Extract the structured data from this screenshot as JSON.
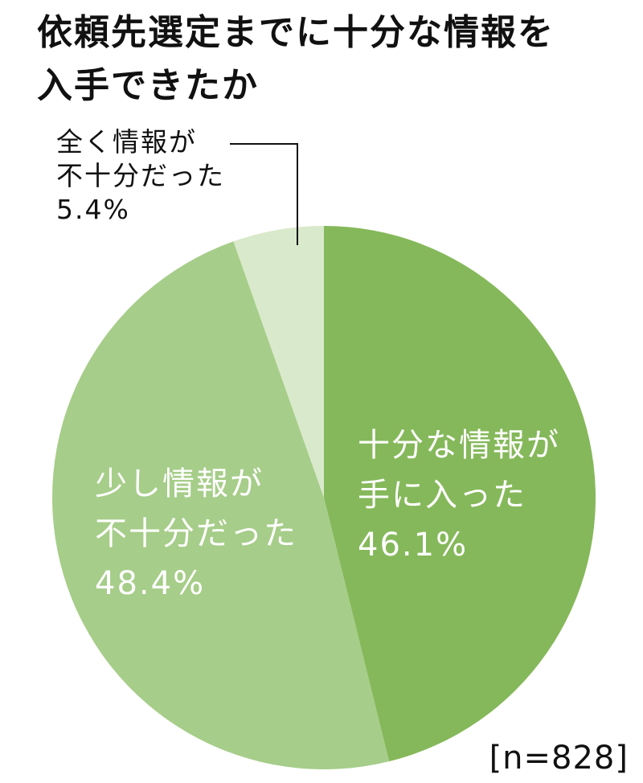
{
  "title": [
    "依頼先選定までに十分な情報を",
    "入手できたか"
  ],
  "sample_note": "[n=828]",
  "chart_data": {
    "type": "pie",
    "title": "依頼先選定までに十分な情報を入手できたか",
    "slices": [
      {
        "label": [
          "十分な情報が",
          "手に入った"
        ],
        "percent_text": "46.1%",
        "value": 46.1,
        "color": "#85b85a",
        "label_color": "#ffffff"
      },
      {
        "label": [
          "少し情報が",
          "不十分だった"
        ],
        "percent_text": "48.4%",
        "value": 48.4,
        "color": "#a6cd89",
        "label_color": "#ffffff"
      },
      {
        "label": [
          "全く情報が",
          "不十分だった"
        ],
        "percent_text": "5.4%",
        "value": 5.4,
        "color": "#d9e9cb",
        "label_color": "#111111"
      }
    ],
    "note": "[n=828]"
  }
}
